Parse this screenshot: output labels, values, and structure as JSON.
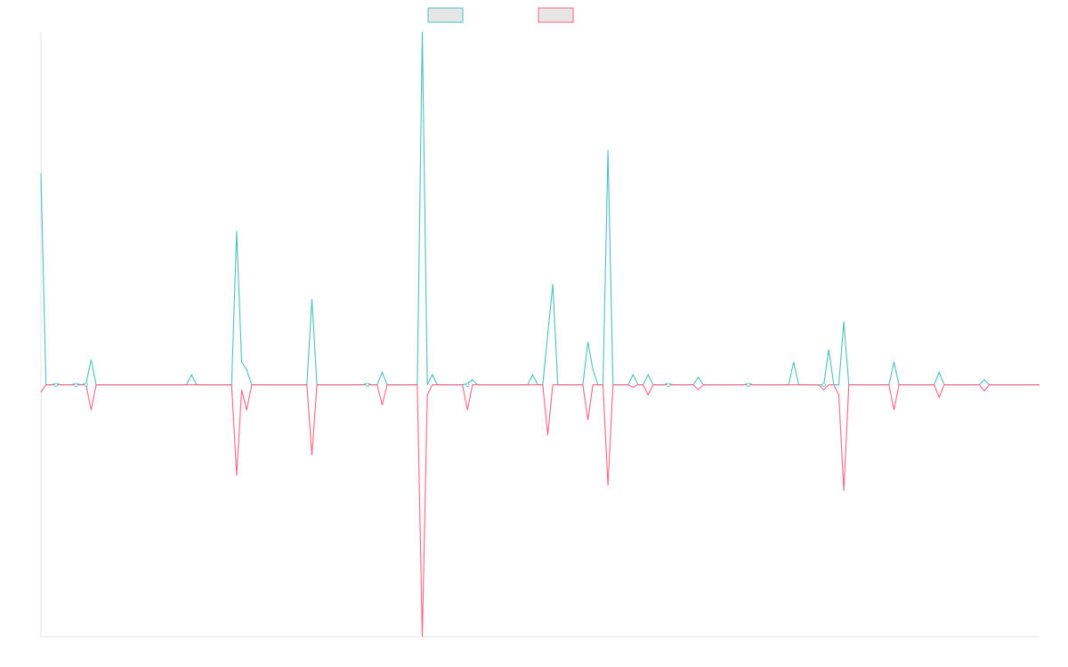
{
  "chart_data": {
    "type": "line",
    "title": "",
    "xlabel": "",
    "ylabel": "",
    "ylim": [
      -1.0,
      1.4
    ],
    "x_count": 200,
    "grid": false,
    "legend_placement": "top-center",
    "series": [
      {
        "color": "#4bc0c0",
        "fill": "#e6e6e6",
        "spikes": [
          [
            0,
            0.84
          ],
          [
            3,
            0.005
          ],
          [
            7,
            0.005
          ],
          [
            9,
            0.005
          ],
          [
            10,
            0.1
          ],
          [
            30,
            0.04
          ],
          [
            39,
            0.61
          ],
          [
            40,
            0.09
          ],
          [
            41,
            0.06
          ],
          [
            54,
            0.34
          ],
          [
            65,
            0.005
          ],
          [
            68,
            0.05
          ],
          [
            76,
            1.4
          ],
          [
            78,
            0.04
          ],
          [
            85,
            0.005
          ],
          [
            86,
            0.02
          ],
          [
            98,
            0.04
          ],
          [
            101,
            0.2
          ],
          [
            102,
            0.4
          ],
          [
            109,
            0.17
          ],
          [
            110,
            0.06
          ],
          [
            113,
            0.93
          ],
          [
            118,
            0.04
          ],
          [
            121,
            0.04
          ],
          [
            125,
            0.005
          ],
          [
            131,
            0.03
          ],
          [
            141,
            0.005
          ],
          [
            150,
            0.09
          ],
          [
            157,
            0.14
          ],
          [
            160,
            0.25
          ],
          [
            170,
            0.09
          ],
          [
            179,
            0.05
          ],
          [
            188,
            0.02
          ]
        ]
      },
      {
        "color": "#ff6384",
        "fill": "#e6e6e6",
        "spikes": [
          [
            0,
            -0.03
          ],
          [
            10,
            -0.1
          ],
          [
            39,
            -0.36
          ],
          [
            40,
            -0.02
          ],
          [
            41,
            -0.1
          ],
          [
            54,
            -0.28
          ],
          [
            68,
            -0.08
          ],
          [
            76,
            -1.0
          ],
          [
            77,
            -0.04
          ],
          [
            85,
            -0.1
          ],
          [
            101,
            -0.2
          ],
          [
            109,
            -0.14
          ],
          [
            113,
            -0.4
          ],
          [
            118,
            -0.01
          ],
          [
            121,
            -0.04
          ],
          [
            131,
            -0.02
          ],
          [
            156,
            -0.02
          ],
          [
            159,
            -0.04
          ],
          [
            160,
            -0.42
          ],
          [
            170,
            -0.1
          ],
          [
            179,
            -0.05
          ],
          [
            188,
            -0.025
          ]
        ]
      }
    ]
  }
}
